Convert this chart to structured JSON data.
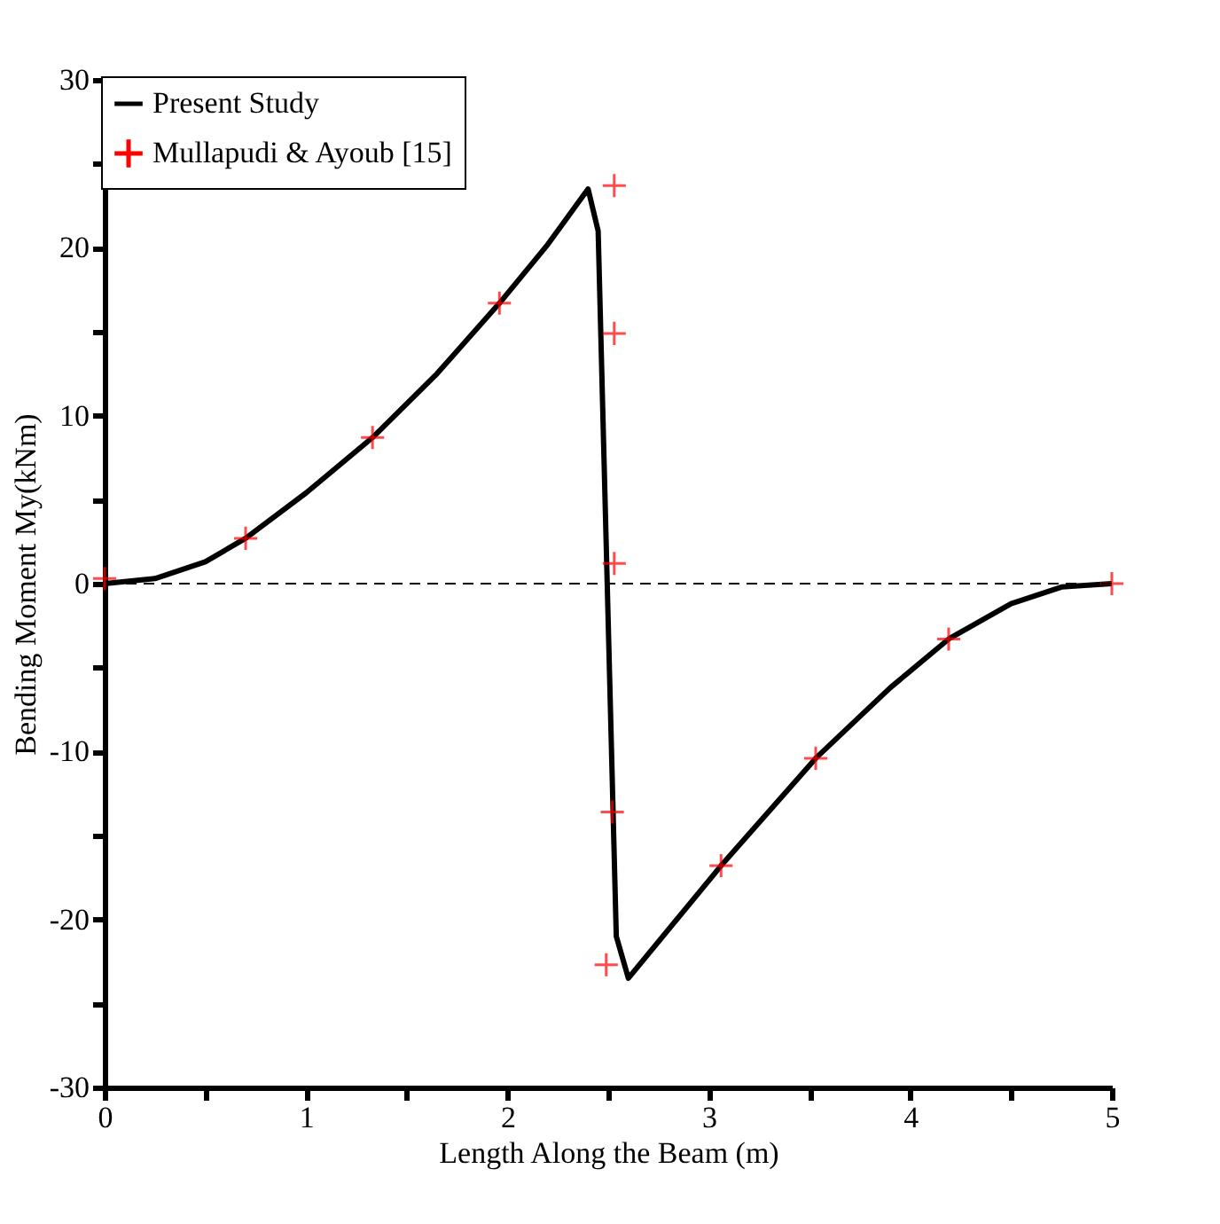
{
  "chart_data": {
    "type": "line",
    "xlabel": "Length Along the Beam (m)",
    "ylabel": "Bending Moment My(kNm)",
    "xlim": [
      0,
      5
    ],
    "ylim": [
      -30,
      30
    ],
    "xticks": [
      0,
      {
        "value": 0.5,
        "label": null
      },
      1,
      {
        "value": 1.5,
        "label": null
      },
      2,
      {
        "value": 2.5,
        "label": null
      },
      3,
      {
        "value": 3.5,
        "label": null
      },
      4,
      {
        "value": 4.5,
        "label": null
      },
      5
    ],
    "yticks": [
      -30,
      {
        "value": -25,
        "label": null
      },
      -20,
      {
        "value": -15,
        "label": null
      },
      -10,
      {
        "value": -5,
        "label": null
      },
      0,
      {
        "value": 5,
        "label": null
      },
      10,
      {
        "value": 15,
        "label": null
      },
      20,
      {
        "value": 25,
        "label": null
      },
      30
    ],
    "grid": false,
    "legend": "top left",
    "ref_lines": [
      {
        "axis": "y",
        "value": 0,
        "color": "#000000",
        "line_style": "dashed"
      }
    ],
    "series": [
      {
        "name": "Present Study",
        "type": "line",
        "color": "#000000",
        "marker": "none",
        "line_style": "solid",
        "x": [
          0,
          0.25,
          0.5,
          0.7,
          1.0,
          1.33,
          1.65,
          1.96,
          2.2,
          2.4,
          2.45,
          2.54,
          2.6,
          3.06,
          3.53,
          3.9,
          4.19,
          4.5,
          4.75,
          5
        ],
        "values": [
          0,
          0.3,
          1.3,
          2.7,
          5.4,
          8.7,
          12.5,
          16.7,
          20.2,
          23.5,
          21.0,
          -21.0,
          -23.5,
          -16.8,
          -10.4,
          -6.2,
          -3.3,
          -1.2,
          -0.2,
          0
        ]
      },
      {
        "name": "Mullapudi & Ayoub [15]",
        "type": "scatter",
        "color": "#ff0000",
        "marker": "cross",
        "x": [
          0,
          0.7,
          1.33,
          1.96,
          2.53,
          2.53,
          2.53,
          2.52,
          2.49,
          3.06,
          3.53,
          4.19,
          5
        ],
        "values": [
          0.3,
          2.7,
          8.7,
          16.7,
          23.7,
          14.9,
          1.2,
          -13.6,
          -22.7,
          -16.8,
          -10.4,
          -3.3,
          0
        ]
      }
    ]
  }
}
